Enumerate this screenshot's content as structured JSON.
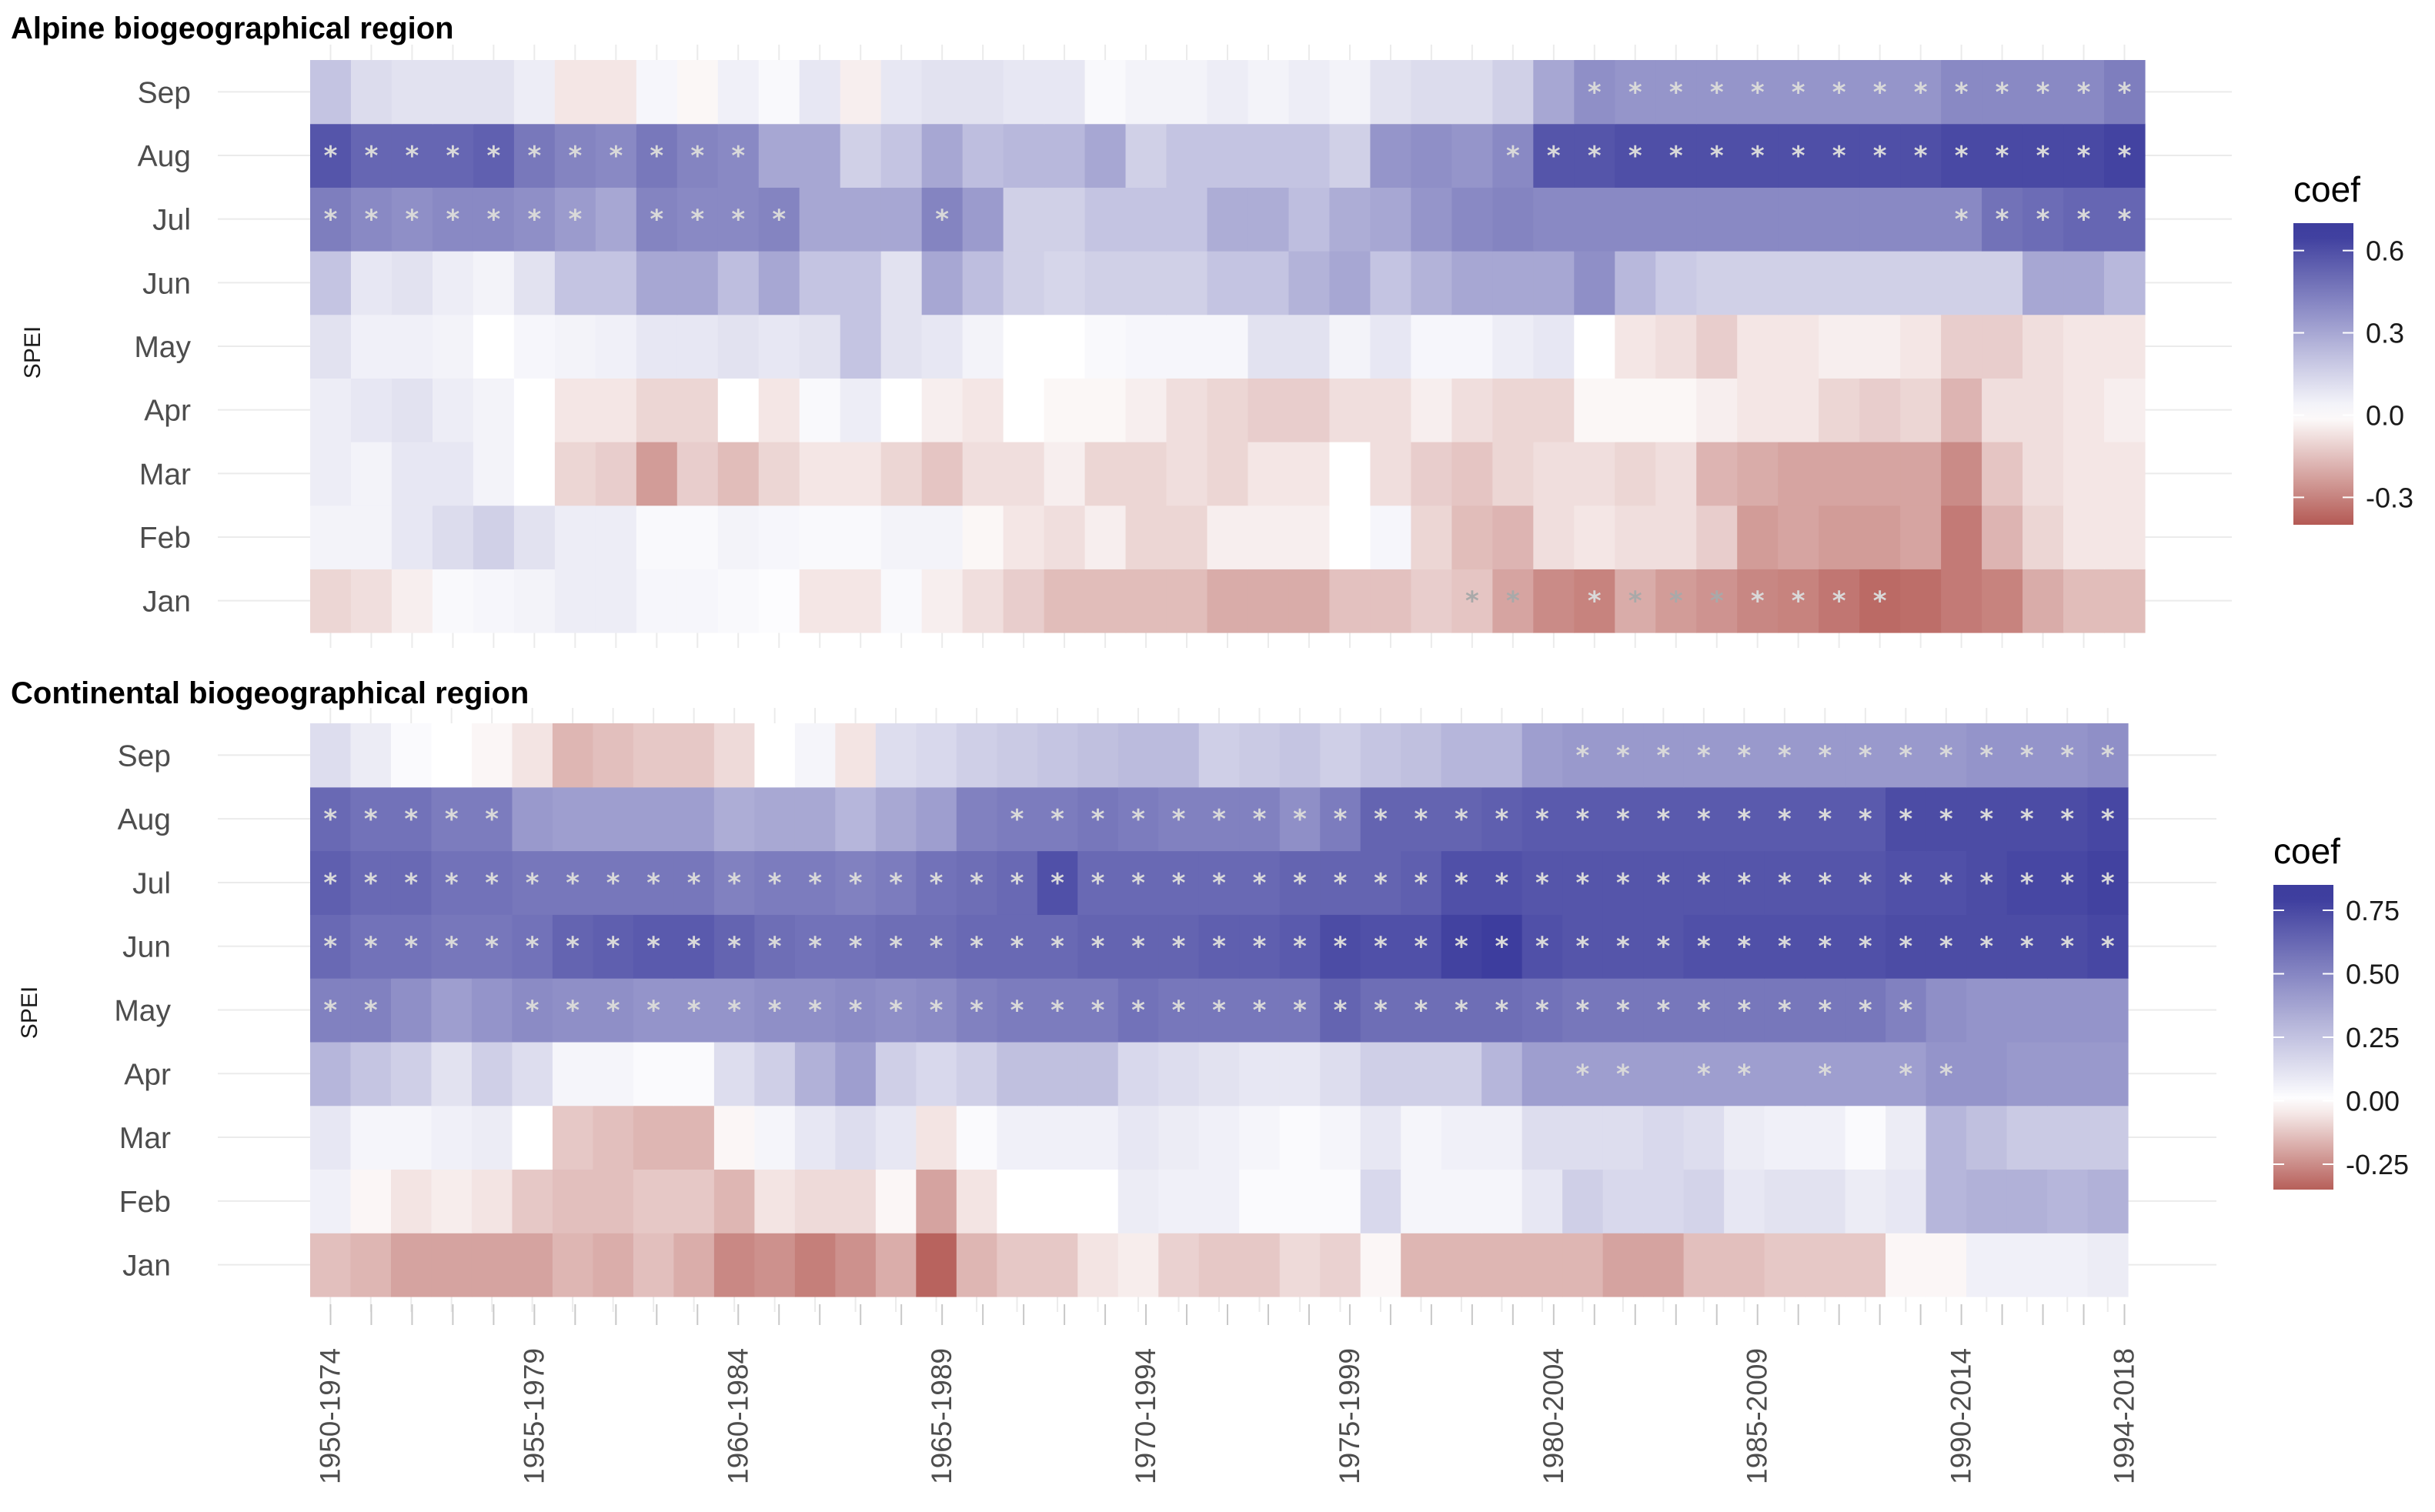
{
  "chart_data": [
    {
      "type": "heatmap",
      "title": "Alpine biogeographical region",
      "ylabel": "SPEI",
      "xlabel": "",
      "months": [
        "Jan",
        "Feb",
        "Mar",
        "Apr",
        "May",
        "Jun",
        "Jul",
        "Aug",
        "Sep"
      ],
      "x_tick_labels": [
        "1950-1974",
        "1955-1979",
        "1960-1984",
        "1965-1989",
        "1970-1994",
        "1975-1999",
        "1980-2004",
        "1985-2009",
        "1990-2014",
        "1994-2018"
      ],
      "n_periods": 45,
      "legend": {
        "title": "coef",
        "ticks": [
          0.6,
          0.3,
          0.0,
          -0.3
        ],
        "tick_labels": [
          "0.6",
          "0.3",
          "0.0",
          "-0.3"
        ],
        "range": [
          -0.4,
          0.7
        ]
      },
      "star_symbol": "*",
      "description_of_values": "rows ordered Jan..Sep; each row has 45 coefficients for moving 25-year periods 1950-1974 .. 1994-2018",
      "values": [
        [
          -0.1,
          -0.08,
          -0.04,
          0.02,
          0.03,
          0.04,
          0.06,
          0.06,
          0.03,
          0.03,
          0.02,
          0.01,
          -0.06,
          -0.06,
          0.02,
          -0.04,
          -0.08,
          -0.12,
          -0.16,
          -0.16,
          -0.16,
          -0.16,
          -0.2,
          -0.2,
          -0.2,
          -0.15,
          -0.15,
          -0.12,
          -0.14,
          -0.22,
          -0.28,
          -0.3,
          -0.2,
          -0.24,
          -0.26,
          -0.29,
          -0.3,
          -0.33,
          -0.36,
          -0.35,
          -0.32,
          -0.3,
          -0.2,
          -0.16,
          -0.16
        ],
        [
          0.04,
          0.04,
          0.08,
          0.12,
          0.16,
          0.1,
          0.06,
          0.06,
          0.02,
          0.02,
          0.04,
          0.03,
          0.02,
          0.02,
          0.04,
          0.04,
          -0.02,
          -0.06,
          -0.08,
          -0.04,
          -0.1,
          -0.1,
          -0.04,
          -0.04,
          -0.04,
          0.0,
          0.03,
          -0.1,
          -0.16,
          -0.18,
          -0.08,
          -0.06,
          -0.08,
          -0.08,
          -0.12,
          -0.24,
          -0.22,
          -0.24,
          -0.24,
          -0.22,
          -0.32,
          -0.18,
          -0.1,
          -0.06,
          -0.06
        ],
        [
          0.06,
          0.04,
          0.08,
          0.08,
          0.04,
          0.0,
          -0.1,
          -0.12,
          -0.24,
          -0.12,
          -0.16,
          -0.1,
          -0.06,
          -0.06,
          -0.1,
          -0.14,
          -0.08,
          -0.08,
          -0.04,
          -0.1,
          -0.1,
          -0.08,
          -0.1,
          -0.06,
          -0.06,
          0.0,
          -0.08,
          -0.12,
          -0.14,
          -0.1,
          -0.08,
          -0.08,
          -0.1,
          -0.08,
          -0.18,
          -0.2,
          -0.22,
          -0.22,
          -0.22,
          -0.22,
          -0.28,
          -0.14,
          -0.08,
          -0.06,
          -0.06
        ],
        [
          0.06,
          0.08,
          0.1,
          0.06,
          0.04,
          0.0,
          -0.06,
          -0.06,
          -0.1,
          -0.1,
          0.0,
          -0.06,
          0.02,
          0.06,
          0.0,
          -0.04,
          -0.06,
          0.0,
          -0.02,
          -0.02,
          -0.04,
          -0.08,
          -0.1,
          -0.12,
          -0.12,
          -0.08,
          -0.08,
          -0.04,
          -0.08,
          -0.1,
          -0.1,
          -0.02,
          -0.02,
          -0.02,
          -0.04,
          -0.06,
          -0.06,
          -0.1,
          -0.12,
          -0.1,
          -0.18,
          -0.08,
          -0.08,
          -0.06,
          -0.04
        ],
        [
          0.1,
          0.05,
          0.05,
          0.04,
          0.0,
          0.03,
          0.04,
          0.05,
          0.08,
          0.08,
          0.1,
          0.08,
          0.1,
          0.2,
          0.1,
          0.08,
          0.04,
          0.0,
          0.0,
          0.02,
          0.03,
          0.03,
          0.03,
          0.1,
          0.1,
          0.04,
          0.08,
          0.03,
          0.03,
          0.06,
          0.08,
          0.0,
          -0.06,
          -0.08,
          -0.12,
          -0.06,
          -0.06,
          -0.04,
          -0.04,
          -0.06,
          -0.12,
          -0.12,
          -0.08,
          -0.06,
          -0.06
        ],
        [
          0.2,
          0.08,
          0.1,
          0.06,
          0.04,
          0.1,
          0.2,
          0.2,
          0.3,
          0.3,
          0.22,
          0.3,
          0.2,
          0.2,
          0.1,
          0.3,
          0.22,
          0.16,
          0.14,
          0.16,
          0.16,
          0.16,
          0.2,
          0.2,
          0.26,
          0.3,
          0.2,
          0.26,
          0.3,
          0.3,
          0.3,
          0.38,
          0.24,
          0.18,
          0.16,
          0.16,
          0.16,
          0.16,
          0.16,
          0.16,
          0.16,
          0.16,
          0.3,
          0.3,
          0.24
        ],
        [
          0.44,
          0.4,
          0.38,
          0.4,
          0.4,
          0.38,
          0.34,
          0.3,
          0.42,
          0.4,
          0.4,
          0.42,
          0.3,
          0.3,
          0.3,
          0.42,
          0.34,
          0.16,
          0.16,
          0.2,
          0.2,
          0.2,
          0.28,
          0.28,
          0.22,
          0.28,
          0.3,
          0.36,
          0.4,
          0.42,
          0.4,
          0.4,
          0.4,
          0.4,
          0.4,
          0.4,
          0.4,
          0.4,
          0.4,
          0.4,
          0.4,
          0.48,
          0.5,
          0.52,
          0.52
        ],
        [
          0.58,
          0.52,
          0.52,
          0.52,
          0.54,
          0.46,
          0.42,
          0.4,
          0.46,
          0.42,
          0.4,
          0.3,
          0.3,
          0.16,
          0.2,
          0.3,
          0.22,
          0.24,
          0.24,
          0.3,
          0.16,
          0.2,
          0.2,
          0.2,
          0.2,
          0.16,
          0.36,
          0.38,
          0.36,
          0.4,
          0.58,
          0.58,
          0.6,
          0.6,
          0.6,
          0.6,
          0.6,
          0.6,
          0.6,
          0.6,
          0.62,
          0.62,
          0.62,
          0.62,
          0.64
        ],
        [
          0.2,
          0.12,
          0.1,
          0.1,
          0.1,
          0.06,
          -0.06,
          -0.06,
          0.03,
          -0.02,
          0.05,
          0.02,
          0.08,
          -0.04,
          0.08,
          0.1,
          0.1,
          0.08,
          0.08,
          0.02,
          0.04,
          0.04,
          0.06,
          0.04,
          0.06,
          0.04,
          0.1,
          0.12,
          0.12,
          0.16,
          0.3,
          0.38,
          0.36,
          0.36,
          0.36,
          0.36,
          0.36,
          0.36,
          0.36,
          0.36,
          0.4,
          0.4,
          0.4,
          0.4,
          0.44
        ]
      ],
      "stars": [
        [
          28,
          29,
          31,
          32,
          33,
          34,
          35,
          36,
          37,
          38
        ],
        [],
        [],
        [],
        [],
        [],
        [
          0,
          1,
          2,
          3,
          4,
          5,
          6,
          8,
          9,
          10,
          11,
          15,
          40,
          41,
          42,
          43,
          44
        ],
        [
          0,
          1,
          2,
          3,
          4,
          5,
          6,
          7,
          8,
          9,
          10,
          29,
          30,
          31,
          32,
          33,
          34,
          35,
          36,
          37,
          38,
          39,
          40,
          41,
          42,
          43,
          44
        ],
        [
          31,
          32,
          33,
          34,
          35,
          36,
          37,
          38,
          39,
          40,
          41,
          42,
          43,
          44
        ]
      ]
    },
    {
      "type": "heatmap",
      "title": "Continental biogeographical region",
      "ylabel": "SPEI",
      "xlabel": "",
      "months": [
        "Jan",
        "Feb",
        "Mar",
        "Apr",
        "May",
        "Jun",
        "Jul",
        "Aug",
        "Sep"
      ],
      "x_tick_labels": [
        "1950-1974",
        "1955-1979",
        "1960-1984",
        "1965-1989",
        "1970-1994",
        "1975-1999",
        "1980-2004",
        "1985-2009",
        "1990-2014",
        "1994-2018"
      ],
      "n_periods": 45,
      "legend": {
        "title": "coef",
        "ticks": [
          0.75,
          0.5,
          0.25,
          0.0,
          -0.25
        ],
        "tick_labels": [
          "0.75",
          "0.50",
          "0.25",
          "0.00",
          "-0.25"
        ],
        "range": [
          -0.35,
          0.85
        ]
      },
      "star_symbol": "*",
      "description_of_values": "rows ordered Jan..Sep; each row has 45 coefficients for moving 25-year periods 1950-1974 .. 1994-2018",
      "values": [
        [
          -0.14,
          -0.16,
          -0.2,
          -0.2,
          -0.2,
          -0.2,
          -0.16,
          -0.18,
          -0.14,
          -0.18,
          -0.26,
          -0.24,
          -0.28,
          -0.24,
          -0.18,
          -0.34,
          -0.16,
          -0.12,
          -0.12,
          -0.06,
          -0.04,
          -0.1,
          -0.12,
          -0.12,
          -0.08,
          -0.1,
          -0.02,
          -0.16,
          -0.16,
          -0.16,
          -0.16,
          -0.16,
          -0.2,
          -0.2,
          -0.14,
          -0.14,
          -0.12,
          -0.12,
          -0.12,
          -0.02,
          -0.02,
          0.06,
          0.06,
          0.06,
          0.08
        ],
        [
          0.06,
          -0.02,
          -0.06,
          -0.04,
          -0.06,
          -0.12,
          -0.14,
          -0.14,
          -0.12,
          -0.12,
          -0.16,
          -0.06,
          -0.08,
          -0.08,
          -0.02,
          -0.2,
          -0.06,
          0.0,
          0.0,
          0.0,
          0.08,
          0.06,
          0.06,
          0.02,
          0.02,
          0.02,
          0.16,
          0.04,
          0.04,
          0.04,
          0.1,
          0.2,
          0.16,
          0.16,
          0.18,
          0.1,
          0.12,
          0.12,
          0.08,
          0.1,
          0.3,
          0.32,
          0.32,
          0.3,
          0.32
        ],
        [
          0.1,
          0.04,
          0.04,
          0.06,
          0.08,
          0.0,
          -0.12,
          -0.14,
          -0.16,
          -0.16,
          -0.02,
          0.04,
          0.1,
          0.14,
          0.1,
          -0.06,
          0.02,
          0.06,
          0.06,
          0.06,
          0.1,
          0.08,
          0.06,
          0.04,
          0.02,
          0.04,
          0.1,
          0.04,
          0.06,
          0.06,
          0.14,
          0.14,
          0.14,
          0.16,
          0.14,
          0.08,
          0.06,
          0.06,
          0.02,
          0.08,
          0.3,
          0.26,
          0.22,
          0.22,
          0.22
        ],
        [
          0.3,
          0.24,
          0.2,
          0.12,
          0.2,
          0.14,
          0.04,
          0.04,
          0.02,
          0.02,
          0.14,
          0.2,
          0.32,
          0.4,
          0.2,
          0.16,
          0.2,
          0.26,
          0.26,
          0.26,
          0.16,
          0.14,
          0.12,
          0.1,
          0.1,
          0.14,
          0.2,
          0.2,
          0.2,
          0.3,
          0.4,
          0.4,
          0.4,
          0.4,
          0.4,
          0.4,
          0.4,
          0.4,
          0.4,
          0.4,
          0.44,
          0.44,
          0.42,
          0.42,
          0.42
        ],
        [
          0.52,
          0.52,
          0.46,
          0.4,
          0.44,
          0.48,
          0.46,
          0.46,
          0.44,
          0.44,
          0.44,
          0.46,
          0.46,
          0.48,
          0.46,
          0.48,
          0.52,
          0.54,
          0.54,
          0.54,
          0.58,
          0.56,
          0.56,
          0.56,
          0.56,
          0.64,
          0.6,
          0.6,
          0.6,
          0.6,
          0.58,
          0.56,
          0.56,
          0.56,
          0.56,
          0.56,
          0.56,
          0.56,
          0.56,
          0.52,
          0.46,
          0.44,
          0.44,
          0.44,
          0.44
        ],
        [
          0.62,
          0.58,
          0.58,
          0.56,
          0.56,
          0.58,
          0.64,
          0.66,
          0.68,
          0.68,
          0.64,
          0.6,
          0.58,
          0.58,
          0.6,
          0.6,
          0.62,
          0.62,
          0.62,
          0.64,
          0.64,
          0.64,
          0.66,
          0.66,
          0.68,
          0.74,
          0.72,
          0.72,
          0.78,
          0.8,
          0.72,
          0.7,
          0.7,
          0.7,
          0.72,
          0.72,
          0.72,
          0.72,
          0.72,
          0.74,
          0.74,
          0.74,
          0.74,
          0.74,
          0.76
        ],
        [
          0.66,
          0.62,
          0.62,
          0.58,
          0.58,
          0.56,
          0.56,
          0.56,
          0.56,
          0.56,
          0.52,
          0.54,
          0.54,
          0.52,
          0.54,
          0.58,
          0.6,
          0.62,
          0.72,
          0.62,
          0.62,
          0.62,
          0.62,
          0.62,
          0.64,
          0.64,
          0.64,
          0.66,
          0.72,
          0.72,
          0.7,
          0.7,
          0.7,
          0.7,
          0.7,
          0.7,
          0.7,
          0.7,
          0.7,
          0.72,
          0.72,
          0.74,
          0.76,
          0.76,
          0.78
        ],
        [
          0.62,
          0.58,
          0.58,
          0.54,
          0.54,
          0.42,
          0.4,
          0.4,
          0.4,
          0.4,
          0.34,
          0.36,
          0.36,
          0.3,
          0.36,
          0.4,
          0.52,
          0.54,
          0.54,
          0.56,
          0.54,
          0.52,
          0.52,
          0.52,
          0.46,
          0.54,
          0.64,
          0.64,
          0.64,
          0.66,
          0.68,
          0.68,
          0.68,
          0.68,
          0.68,
          0.68,
          0.68,
          0.68,
          0.68,
          0.74,
          0.74,
          0.74,
          0.74,
          0.74,
          0.76
        ],
        [
          0.14,
          0.08,
          0.02,
          0.0,
          -0.02,
          -0.06,
          -0.16,
          -0.14,
          -0.12,
          -0.12,
          -0.08,
          0.0,
          0.04,
          -0.06,
          0.14,
          0.16,
          0.2,
          0.22,
          0.24,
          0.26,
          0.28,
          0.28,
          0.2,
          0.22,
          0.24,
          0.2,
          0.24,
          0.26,
          0.3,
          0.3,
          0.4,
          0.42,
          0.42,
          0.42,
          0.42,
          0.42,
          0.42,
          0.42,
          0.42,
          0.42,
          0.42,
          0.44,
          0.44,
          0.44,
          0.46
        ]
      ],
      "stars": [
        [],
        [],
        [],
        [
          31,
          32,
          34,
          35,
          37,
          39,
          40
        ],
        [
          0,
          1,
          5,
          6,
          7,
          8,
          9,
          10,
          11,
          12,
          13,
          14,
          15,
          16,
          17,
          18,
          19,
          20,
          21,
          22,
          23,
          24,
          25,
          26,
          27,
          28,
          29,
          30,
          31,
          32,
          33,
          34,
          35,
          36,
          37,
          38,
          39
        ],
        [
          0,
          1,
          2,
          3,
          4,
          5,
          6,
          7,
          8,
          9,
          10,
          11,
          12,
          13,
          14,
          15,
          16,
          17,
          18,
          19,
          20,
          21,
          22,
          23,
          24,
          25,
          26,
          27,
          28,
          29,
          30,
          31,
          32,
          33,
          34,
          35,
          36,
          37,
          38,
          39,
          40,
          41,
          42,
          43,
          44
        ],
        [
          0,
          1,
          2,
          3,
          4,
          5,
          6,
          7,
          8,
          9,
          10,
          11,
          12,
          13,
          14,
          15,
          16,
          17,
          18,
          19,
          20,
          21,
          22,
          23,
          24,
          25,
          26,
          27,
          28,
          29,
          30,
          31,
          32,
          33,
          34,
          35,
          36,
          37,
          38,
          39,
          40,
          41,
          42,
          43,
          44
        ],
        [
          0,
          1,
          2,
          3,
          4,
          17,
          18,
          19,
          20,
          21,
          22,
          23,
          24,
          25,
          26,
          27,
          28,
          29,
          30,
          31,
          32,
          33,
          34,
          35,
          36,
          37,
          38,
          39,
          40,
          41,
          42,
          43,
          44
        ],
        [
          31,
          32,
          33,
          34,
          35,
          36,
          37,
          38,
          39,
          40,
          41,
          42,
          43,
          44
        ]
      ]
    }
  ],
  "colors": {
    "high": "#3d3d9e",
    "mid": "#ffffff",
    "low": "#b0514b",
    "star_light": "#d9d9d9",
    "star_dark": "#a9a9a9",
    "grid": "#ebebeb"
  }
}
